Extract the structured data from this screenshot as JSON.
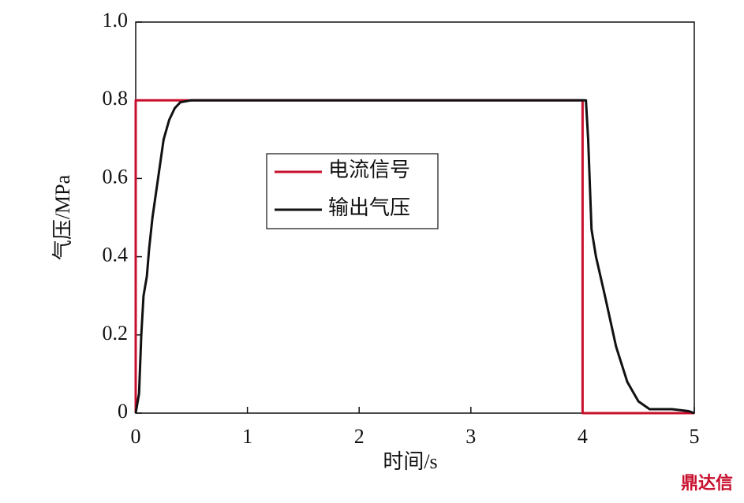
{
  "chart_data": {
    "type": "line",
    "x_label": "时间/s",
    "y_label": "气压/MPa",
    "xlim": [
      0,
      5
    ],
    "xticks": [
      0,
      1,
      2,
      3,
      4,
      5
    ],
    "ylim": [
      0,
      1
    ],
    "yticks": [
      0,
      0.2,
      0.4,
      0.6,
      0.8,
      {
        "value": 1,
        "label": "1.0"
      }
    ],
    "series": [
      {
        "name": "电流信号",
        "color": "#c8102e",
        "x": [
          0,
          0,
          4,
          4,
          5
        ],
        "values": [
          0,
          0.8,
          0.8,
          0,
          0
        ]
      },
      {
        "name": "输出气压",
        "color": "#111111",
        "x": [
          0,
          0.03,
          0.05,
          0.07,
          0.1,
          0.12,
          0.15,
          0.2,
          0.25,
          0.3,
          0.35,
          0.4,
          0.5,
          1,
          2,
          3,
          4.03,
          4.05,
          4.08,
          4.12,
          4.2,
          4.3,
          4.4,
          4.5,
          4.6,
          4.8,
          4.95,
          5
        ],
        "values": [
          0,
          0.05,
          0.2,
          0.3,
          0.35,
          0.42,
          0.5,
          0.6,
          0.7,
          0.75,
          0.78,
          0.795,
          0.8,
          0.8,
          0.8,
          0.8,
          0.8,
          0.7,
          0.47,
          0.4,
          0.3,
          0.17,
          0.08,
          0.03,
          0.01,
          0.01,
          0.005,
          0
        ]
      }
    ],
    "watermark": "鼎达信"
  }
}
